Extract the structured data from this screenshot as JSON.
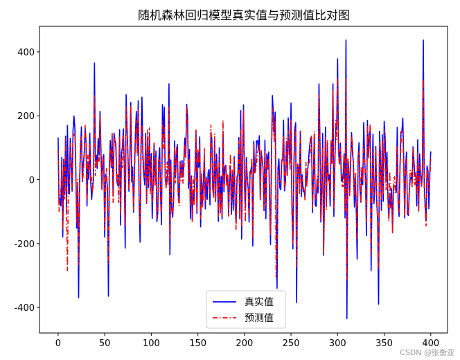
{
  "chart_data": {
    "type": "line",
    "title": "随机森林回归模型真实值与预测值比对图",
    "xlabel": "",
    "ylabel": "",
    "xlim": [
      -20,
      418
    ],
    "ylim": [
      -480,
      480
    ],
    "xticks": [
      0,
      50,
      100,
      150,
      200,
      250,
      300,
      350,
      400
    ],
    "yticks": [
      -400,
      -200,
      0,
      200,
      400
    ],
    "legend_position": "lower-center",
    "grid": false,
    "n_points": 401,
    "series": [
      {
        "name": "真实值",
        "color": "#0000ff",
        "style": "solid",
        "notable_points": [
          [
            39,
            365
          ],
          [
            22,
            -370
          ],
          [
            54,
            -365
          ],
          [
            309,
            437
          ],
          [
            392,
            437
          ],
          [
            310,
            -435
          ],
          [
            235,
            -340
          ],
          [
            256,
            -385
          ],
          [
            344,
            -390
          ],
          [
            300,
            378
          ]
        ]
      },
      {
        "name": "预测值",
        "color": "#ff0000",
        "style": "dash-dot",
        "notable_points": [
          [
            10,
            -285
          ],
          [
            234,
            -305
          ],
          [
            300,
            320
          ]
        ]
      }
    ]
  },
  "watermark": "CSDN @张衡亚"
}
